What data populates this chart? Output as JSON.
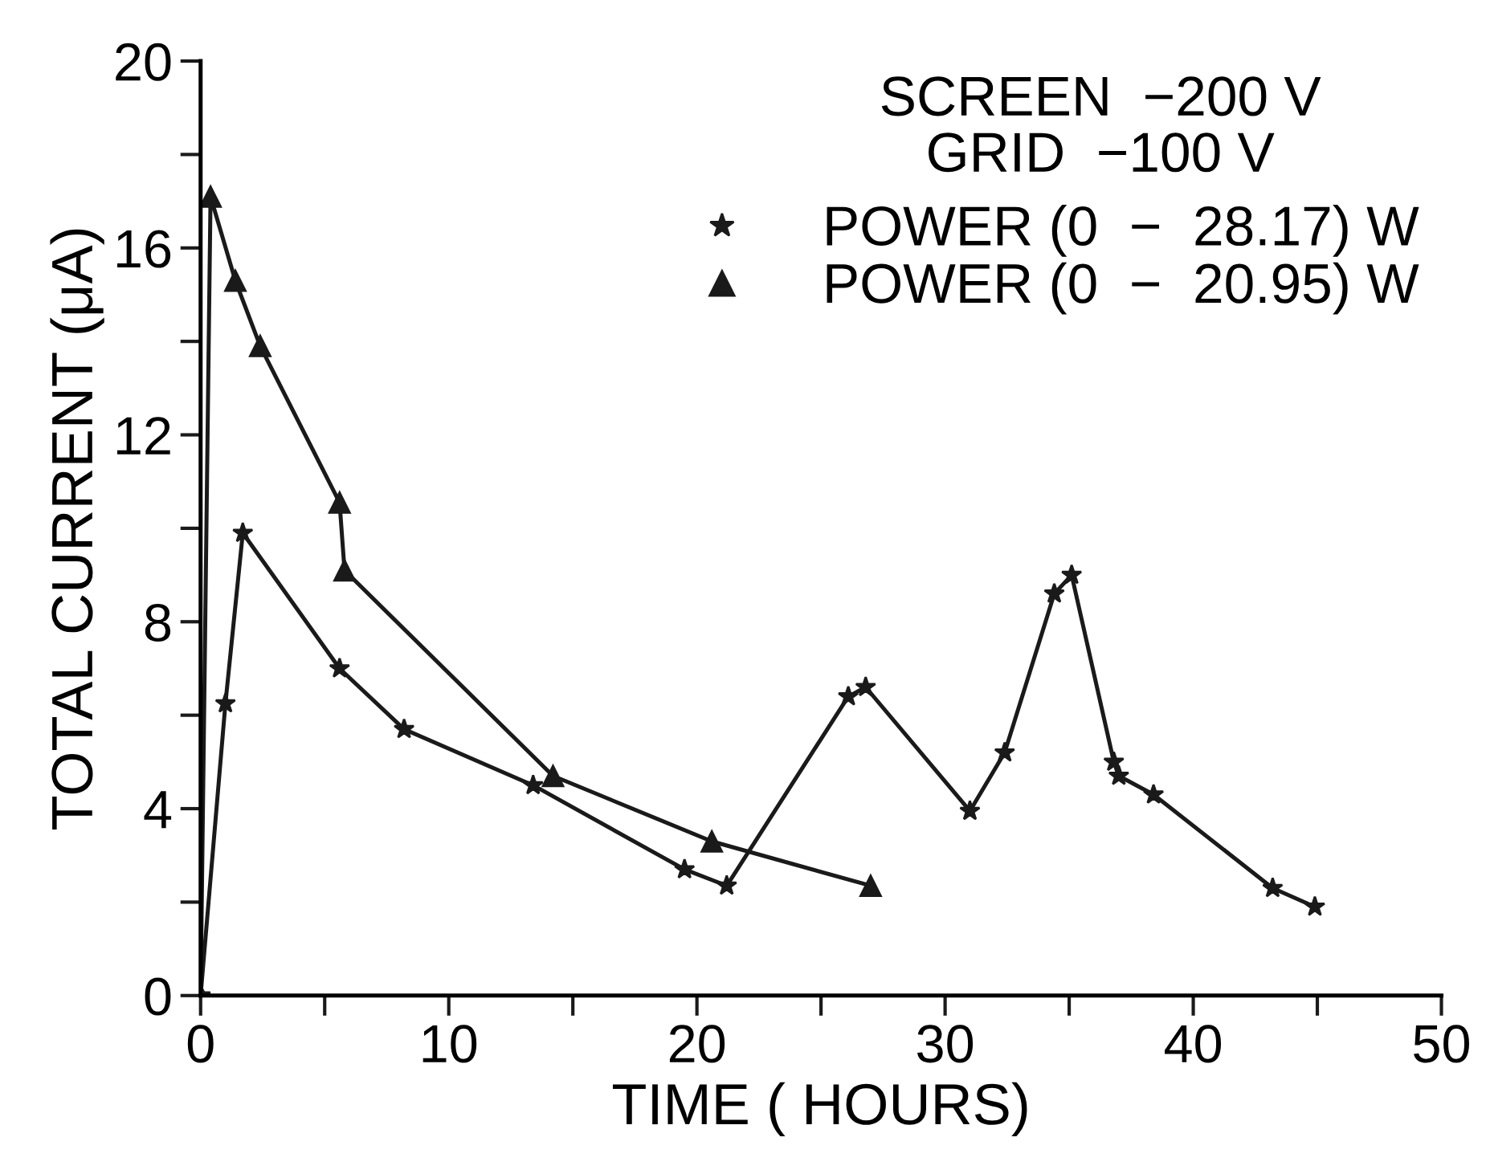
{
  "chart_data": {
    "type": "line",
    "xlabel": "TIME ( HOURS)",
    "ylabel": "TOTAL CURRENT (μA)",
    "annotations": [
      "SCREEN  −200 V",
      "GRID  −100 V"
    ],
    "series": [
      {
        "name": "POWER (0  −  28.17) W",
        "color": "#1a1a1a",
        "marker": "star",
        "x": [
          0,
          1.0,
          1.7,
          5.6,
          8.2,
          13.4,
          19.5,
          21.2,
          26.1,
          26.8,
          31.0,
          32.4,
          34.4,
          35.1,
          36.8,
          37.0,
          38.4,
          43.2,
          44.9
        ],
        "values": [
          0,
          6.25,
          9.9,
          7.0,
          5.7,
          4.5,
          2.7,
          2.35,
          6.4,
          6.6,
          3.95,
          5.2,
          8.6,
          9.0,
          5.0,
          4.7,
          4.3,
          2.3,
          1.9
        ]
      },
      {
        "name": "POWER (0  −  20.95) W",
        "color": "#1a1a1a",
        "marker": "triangle",
        "x": [
          0,
          0.4,
          1.4,
          2.4,
          5.6,
          5.8,
          14.2,
          20.6,
          27.0
        ],
        "values": [
          0,
          17.1,
          15.3,
          13.9,
          10.55,
          9.1,
          4.7,
          3.3,
          2.35
        ]
      }
    ],
    "xlim": [
      0,
      50
    ],
    "xticks": [
      0,
      {
        "value": 5,
        "label": null
      },
      10,
      {
        "value": 15,
        "label": null
      },
      20,
      {
        "value": 25,
        "label": null
      },
      30,
      {
        "value": 35,
        "label": null
      },
      40,
      {
        "value": 45,
        "label": null
      },
      50
    ],
    "ylim": [
      0,
      20
    ],
    "yticks": [
      0,
      {
        "value": 2,
        "label": null
      },
      4,
      {
        "value": 6,
        "label": null
      },
      8,
      {
        "value": 10,
        "label": null
      },
      12,
      {
        "value": 14,
        "label": null
      },
      16,
      {
        "value": 18,
        "label": null
      },
      20
    ],
    "grid": false,
    "legend": "top right",
    "line_style": "solid"
  }
}
